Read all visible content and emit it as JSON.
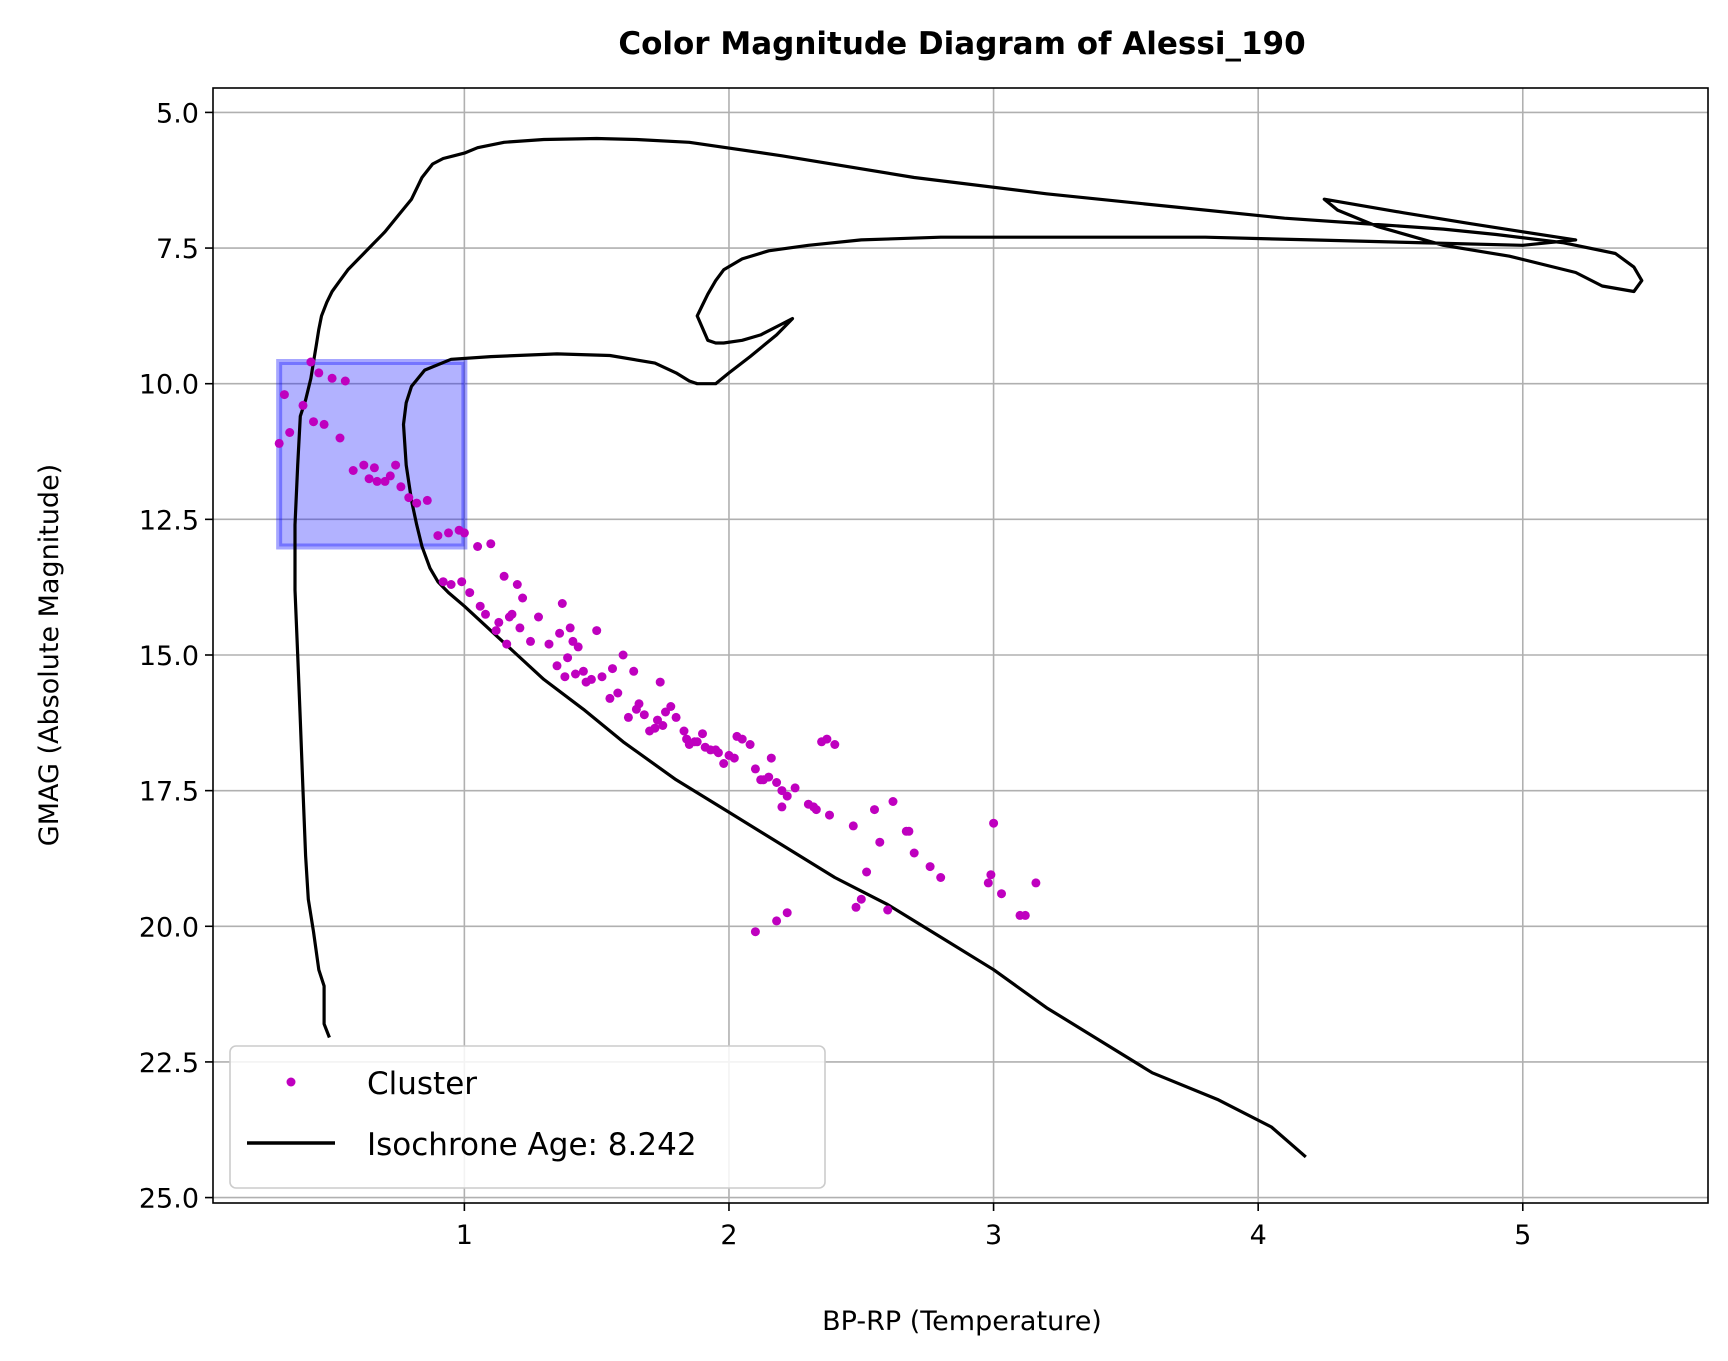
{
  "chart_data": {
    "type": "scatter",
    "title": "Color Magnitude Diagram of Alessi_190",
    "xlabel": "BP-RP (Temperature)",
    "ylabel": "GMAG (Absolute Magnitude)",
    "xlim": [
      0.05,
      5.7
    ],
    "ylim": [
      25.1,
      4.55
    ],
    "y_inverted": true,
    "xticks": [
      1,
      2,
      3,
      4,
      5
    ],
    "xtick_labels": [
      "1",
      "2",
      "3",
      "4",
      "5"
    ],
    "yticks": [
      5.0,
      7.5,
      10.0,
      12.5,
      15.0,
      17.5,
      20.0,
      22.5,
      25.0
    ],
    "ytick_labels": [
      "5.0",
      "7.5",
      "10.0",
      "12.5",
      "15.0",
      "17.5",
      "20.0",
      "22.5",
      "25.0"
    ],
    "grid": true,
    "legend_placement": "lower-left",
    "colors": {
      "cluster": "#bf00bf",
      "isochrone": "#000000",
      "selection_fill": "#0000ff",
      "grid": "#b0b0b0"
    },
    "selection_box": {
      "x0": 0.3,
      "x1": 1.0,
      "y0": 9.6,
      "y1": 13.0
    },
    "series": [
      {
        "name": "Cluster",
        "kind": "scatter",
        "x": [
          0.42,
          0.45,
          0.32,
          0.39,
          0.5,
          0.55,
          0.3,
          0.34,
          0.43,
          0.47,
          0.53,
          0.58,
          0.62,
          0.66,
          0.7,
          0.64,
          0.72,
          0.67,
          0.74,
          0.76,
          0.79,
          0.82,
          0.86,
          0.9,
          0.94,
          0.98,
          1.0,
          1.05,
          1.1,
          1.15,
          1.2,
          1.22,
          1.18,
          1.12,
          1.16,
          1.25,
          0.92,
          0.95,
          0.99,
          1.02,
          1.06,
          1.08,
          1.13,
          1.17,
          1.21,
          1.28,
          1.32,
          1.36,
          1.4,
          1.35,
          1.38,
          1.42,
          1.45,
          1.48,
          1.5,
          1.37,
          1.39,
          1.41,
          1.43,
          1.46,
          1.52,
          1.55,
          1.58,
          1.6,
          1.62,
          1.66,
          1.68,
          1.72,
          1.75,
          1.78,
          1.8,
          1.83,
          1.87,
          1.9,
          1.95,
          2.0,
          2.02,
          2.05,
          2.1,
          2.12,
          2.15,
          2.18,
          2.2,
          2.22,
          1.98,
          2.03,
          1.76,
          1.73,
          1.7,
          1.65,
          2.16,
          2.2,
          2.25,
          2.3,
          2.33,
          2.38,
          2.4,
          2.47,
          2.55,
          2.62,
          2.57,
          2.67,
          2.7,
          2.76,
          2.8,
          2.98,
          3.0,
          3.03,
          3.1,
          3.12,
          3.16,
          2.99,
          2.68,
          2.48,
          2.5,
          2.52,
          2.6,
          2.1,
          2.18,
          2.22,
          2.32,
          2.35,
          2.37,
          1.56,
          1.64,
          1.74,
          1.84,
          2.08,
          1.91,
          1.93,
          1.88,
          1.96,
          2.13,
          1.85
        ],
        "y": [
          9.6,
          9.8,
          10.2,
          10.4,
          9.9,
          9.95,
          11.1,
          10.9,
          10.7,
          10.75,
          11.0,
          11.6,
          11.5,
          11.55,
          11.8,
          11.75,
          11.7,
          11.8,
          11.5,
          11.9,
          12.1,
          12.2,
          12.15,
          12.8,
          12.75,
          12.7,
          12.75,
          13.0,
          12.95,
          13.55,
          13.7,
          13.95,
          14.25,
          14.55,
          14.8,
          14.75,
          13.65,
          13.7,
          13.65,
          13.85,
          14.1,
          14.25,
          14.4,
          14.3,
          14.5,
          14.3,
          14.8,
          14.6,
          14.5,
          15.2,
          15.4,
          15.35,
          15.3,
          15.45,
          14.55,
          14.05,
          15.05,
          14.75,
          14.85,
          15.5,
          15.4,
          15.8,
          15.7,
          15.0,
          16.15,
          15.9,
          16.1,
          16.35,
          16.3,
          15.95,
          16.15,
          16.4,
          16.6,
          16.45,
          16.75,
          16.85,
          16.9,
          16.55,
          17.1,
          17.3,
          17.25,
          17.35,
          17.5,
          17.6,
          17.0,
          16.5,
          16.05,
          16.2,
          16.4,
          16.0,
          16.9,
          17.8,
          17.45,
          17.75,
          17.85,
          17.95,
          16.65,
          18.15,
          17.85,
          17.7,
          18.45,
          18.25,
          18.65,
          18.9,
          19.1,
          19.2,
          18.1,
          19.4,
          19.8,
          19.8,
          19.2,
          19.05,
          18.25,
          19.65,
          19.5,
          19.0,
          19.7,
          20.1,
          19.9,
          19.75,
          17.8,
          16.6,
          16.55,
          15.25,
          15.3,
          15.5,
          16.55,
          16.65,
          16.7,
          16.75,
          16.6,
          16.8,
          17.3,
          16.65
        ]
      },
      {
        "name": "Isochrone Age: 8.242",
        "kind": "line",
        "x": [
          0.49,
          0.47,
          0.47,
          0.45,
          0.43,
          0.41,
          0.4,
          0.39,
          0.38,
          0.37,
          0.36,
          0.36,
          0.37,
          0.38,
          0.4,
          0.42,
          0.43,
          0.44,
          0.45,
          0.46,
          0.48,
          0.5,
          0.53,
          0.56,
          0.6,
          0.65,
          0.7,
          0.75,
          0.8,
          0.84,
          0.88,
          0.92,
          0.96,
          1.0,
          1.05,
          1.15,
          1.3,
          1.5,
          1.65,
          1.85,
          2.2,
          2.7,
          3.2,
          3.7,
          4.1,
          4.4,
          4.7,
          4.9,
          5.15,
          5.35,
          5.42,
          5.45,
          5.42,
          5.3,
          5.2,
          4.95,
          4.7,
          4.45,
          4.3,
          4.25,
          4.55,
          4.8,
          5.0,
          5.2,
          5.0,
          4.6,
          4.2,
          3.8,
          3.3,
          2.8,
          2.5,
          2.3,
          2.15,
          2.05,
          1.98,
          1.95,
          1.92,
          1.9,
          1.88,
          1.92,
          1.95,
          1.98,
          2.05,
          2.12,
          2.2,
          2.24,
          2.18,
          2.08,
          2.0,
          1.95,
          1.92,
          1.88,
          1.85,
          1.8,
          1.72,
          1.55,
          1.35,
          1.1,
          0.95,
          0.85,
          0.8,
          0.78,
          0.77,
          0.78,
          0.8,
          0.82,
          0.84,
          0.87,
          0.9,
          0.94,
          1.0,
          1.1,
          1.2,
          1.3,
          1.45,
          1.6,
          1.8,
          2.0,
          2.2,
          2.4,
          2.6,
          2.8,
          3.0,
          3.2,
          3.4,
          3.6,
          3.85,
          4.05,
          4.18
        ],
        "y": [
          22.05,
          21.8,
          21.1,
          20.8,
          20.1,
          19.5,
          18.7,
          17.5,
          16.2,
          15.0,
          13.8,
          12.6,
          11.5,
          10.6,
          10.3,
          9.9,
          9.6,
          9.3,
          9.0,
          8.75,
          8.5,
          8.3,
          8.1,
          7.9,
          7.7,
          7.45,
          7.2,
          6.9,
          6.6,
          6.2,
          5.95,
          5.85,
          5.8,
          5.75,
          5.65,
          5.55,
          5.5,
          5.48,
          5.5,
          5.55,
          5.8,
          6.2,
          6.5,
          6.75,
          6.95,
          7.05,
          7.15,
          7.25,
          7.4,
          7.6,
          7.85,
          8.1,
          8.3,
          8.2,
          7.95,
          7.65,
          7.45,
          7.1,
          6.8,
          6.6,
          6.85,
          7.05,
          7.2,
          7.35,
          7.45,
          7.4,
          7.35,
          7.3,
          7.3,
          7.3,
          7.35,
          7.45,
          7.55,
          7.7,
          7.9,
          8.1,
          8.35,
          8.55,
          8.75,
          9.2,
          9.25,
          9.25,
          9.2,
          9.1,
          8.9,
          8.8,
          9.1,
          9.5,
          9.8,
          10.0,
          10.0,
          10.0,
          9.95,
          9.8,
          9.62,
          9.48,
          9.45,
          9.5,
          9.55,
          9.75,
          10.05,
          10.35,
          10.75,
          11.5,
          12.15,
          12.6,
          13.0,
          13.4,
          13.65,
          13.85,
          14.1,
          14.55,
          15.0,
          15.45,
          16.0,
          16.6,
          17.3,
          17.9,
          18.5,
          19.1,
          19.6,
          20.2,
          20.8,
          21.5,
          22.1,
          22.7,
          23.2,
          23.7,
          24.25
        ]
      }
    ]
  }
}
